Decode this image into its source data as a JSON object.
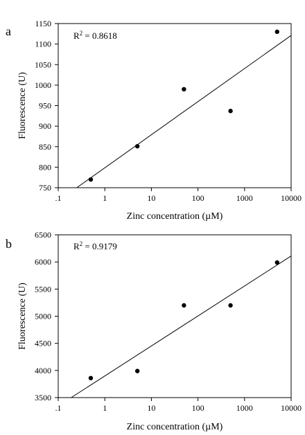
{
  "chart_data": [
    {
      "type": "scatter",
      "panel_label": "a",
      "r2_prefix": "R",
      "r2_sup": "2",
      "r2_value": " = 0.8618",
      "xlabel": "Zinc concentration (µM)",
      "ylabel": "Fluorescence (U)",
      "x_scale": "log",
      "xlim": [
        0.1,
        10000
      ],
      "ylim": [
        750,
        1150
      ],
      "x_ticks": [
        0.1,
        1,
        10,
        100,
        1000,
        10000
      ],
      "x_tick_labels": [
        ".1",
        "1",
        "10",
        "100",
        "1000",
        "10000"
      ],
      "y_ticks": [
        750,
        800,
        850,
        900,
        950,
        1000,
        1050,
        1100,
        1150
      ],
      "y_tick_labels": [
        "750",
        "800",
        "850",
        "900",
        "950",
        "1000",
        "1050",
        "1100",
        "1150"
      ],
      "points": [
        {
          "x": 0.5,
          "y": 770
        },
        {
          "x": 5,
          "y": 851
        },
        {
          "x": 50,
          "y": 990
        },
        {
          "x": 500,
          "y": 937
        },
        {
          "x": 5000,
          "y": 1130
        }
      ],
      "trendline": {
        "x": [
          0.25,
          10000
        ],
        "y": [
          750,
          1121
        ]
      },
      "grid": false
    },
    {
      "type": "scatter",
      "panel_label": "b",
      "r2_prefix": "R",
      "r2_sup": "2",
      "r2_value": " = 0.9179",
      "xlabel": "Zinc concentration (µM)",
      "ylabel": "Fluorescence (U)",
      "x_scale": "log",
      "xlim": [
        0.1,
        10000
      ],
      "ylim": [
        3500,
        6500
      ],
      "x_ticks": [
        0.1,
        1,
        10,
        100,
        1000,
        10000
      ],
      "x_tick_labels": [
        ".1",
        "1",
        "10",
        "100",
        "1000",
        "10000"
      ],
      "y_ticks": [
        3500,
        4000,
        4500,
        5000,
        5500,
        6000,
        6500
      ],
      "y_tick_labels": [
        "3500",
        "4000",
        "4500",
        "5000",
        "5500",
        "6000",
        "6500"
      ],
      "points": [
        {
          "x": 0.5,
          "y": 3860
        },
        {
          "x": 5,
          "y": 3990
        },
        {
          "x": 50,
          "y": 5200
        },
        {
          "x": 500,
          "y": 5200
        },
        {
          "x": 5000,
          "y": 5990
        }
      ],
      "trendline": {
        "x": [
          0.19,
          10000
        ],
        "y": [
          3500,
          6110
        ]
      },
      "grid": false
    }
  ]
}
